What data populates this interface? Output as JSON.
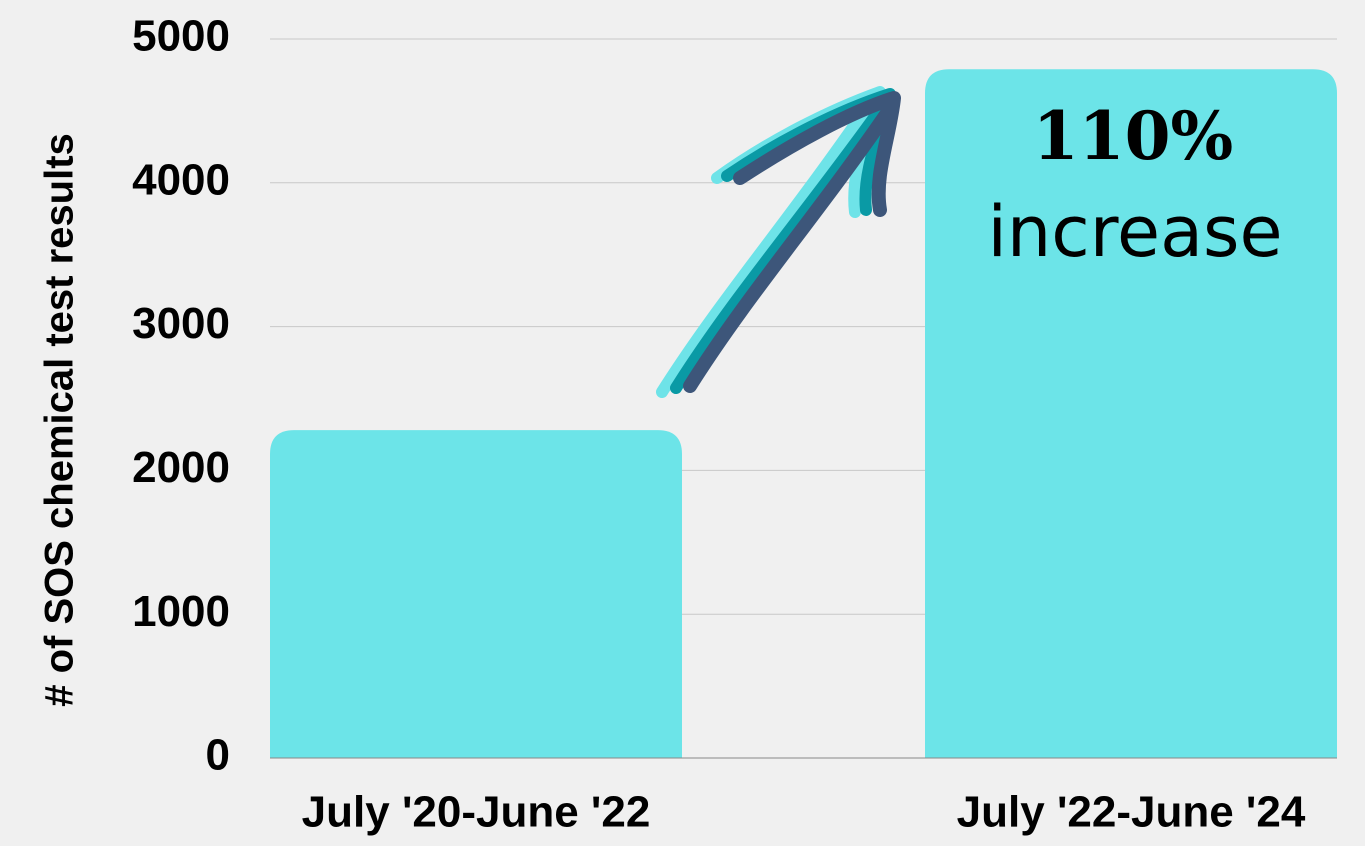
{
  "chart_data": {
    "type": "bar",
    "y_label": "# of SOS chemical test results",
    "categories": [
      "July '20-June '22",
      "July '22-June '24"
    ],
    "values": [
      2280,
      4790
    ],
    "color": "#6ce4e8",
    "ylim": [
      0,
      5000
    ],
    "yticks": [
      0,
      1000,
      2000,
      3000,
      4000,
      5000
    ],
    "grid": true,
    "annotations": [
      "110%",
      "increase"
    ]
  }
}
